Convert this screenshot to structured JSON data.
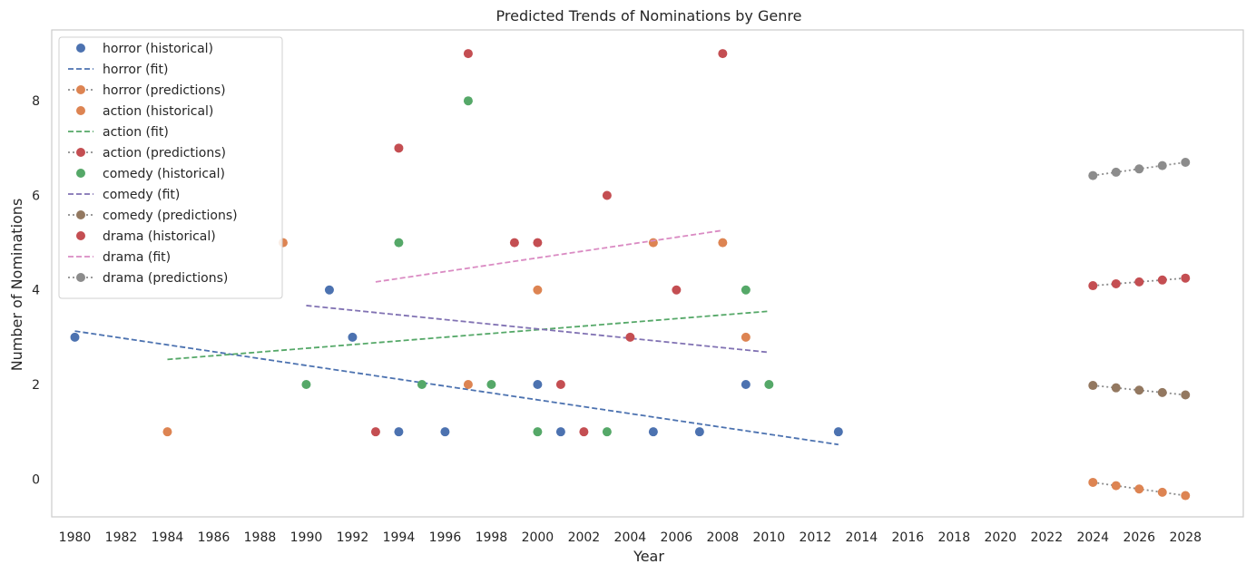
{
  "chart_data": {
    "type": "scatter",
    "title": "Predicted Trends of Nominations by Genre",
    "xlabel": "Year",
    "ylabel": "Number of Nominations",
    "xlim": [
      1979,
      2030.5
    ],
    "ylim": [
      -0.8,
      9.5
    ],
    "xticks": [
      1980,
      1982,
      1984,
      1986,
      1988,
      1990,
      1992,
      1994,
      1996,
      1998,
      2000,
      2002,
      2004,
      2006,
      2008,
      2010,
      2012,
      2014,
      2016,
      2018,
      2020,
      2022,
      2024,
      2026,
      2028
    ],
    "yticks": [
      0,
      2,
      4,
      6,
      8
    ],
    "grid": false,
    "legend_position": "top-left",
    "series": [
      {
        "name": "horror (historical)",
        "kind": "scatter",
        "color": "#4c72b0",
        "x": [
          1980,
          1991,
          1992,
          1994,
          1996,
          2000,
          2001,
          2005,
          2007,
          2009,
          2013
        ],
        "y": [
          3,
          4,
          3,
          1,
          1,
          2,
          1,
          1,
          1,
          2,
          1
        ]
      },
      {
        "name": "horror (fit)",
        "kind": "line",
        "dash": "dashed",
        "color": "#4c72b0",
        "x": [
          1980,
          2013
        ],
        "y": [
          3.13,
          0.73
        ]
      },
      {
        "name": "horror (predictions)",
        "kind": "line-markers",
        "dash": "dotted",
        "color": "#dd8452",
        "line_color": "#8c8c8c",
        "x": [
          2024,
          2025,
          2026,
          2027,
          2028
        ],
        "y": [
          -0.07,
          -0.14,
          -0.21,
          -0.28,
          -0.35
        ]
      },
      {
        "name": "action (historical)",
        "kind": "scatter",
        "color": "#dd8452",
        "x": [
          1984,
          1989,
          1997,
          2000,
          2005,
          2008,
          2009
        ],
        "y": [
          1,
          5,
          2,
          4,
          5,
          5,
          3
        ]
      },
      {
        "name": "action (fit)",
        "kind": "line",
        "dash": "dashed",
        "color": "#55a868",
        "x": [
          1984,
          2010
        ],
        "y": [
          2.53,
          3.55
        ]
      },
      {
        "name": "action (predictions)",
        "kind": "line-markers",
        "dash": "dotted",
        "color": "#c44e52",
        "line_color": "#8c8c8c",
        "x": [
          2024,
          2025,
          2026,
          2027,
          2028
        ],
        "y": [
          4.09,
          4.13,
          4.17,
          4.21,
          4.25
        ]
      },
      {
        "name": "comedy (historical)",
        "kind": "scatter",
        "color": "#55a868",
        "x": [
          1990,
          1994,
          1995,
          1997,
          1998,
          2000,
          2003,
          2009,
          2010
        ],
        "y": [
          2,
          5,
          2,
          8,
          2,
          1,
          1,
          4,
          2
        ]
      },
      {
        "name": "comedy (fit)",
        "kind": "line",
        "dash": "dashed",
        "color": "#8172b3",
        "x": [
          1990,
          2010
        ],
        "y": [
          3.67,
          2.68
        ]
      },
      {
        "name": "comedy (predictions)",
        "kind": "line-markers",
        "dash": "dotted",
        "color": "#937860",
        "line_color": "#8c8c8c",
        "x": [
          2024,
          2025,
          2026,
          2027,
          2028
        ],
        "y": [
          1.98,
          1.93,
          1.88,
          1.83,
          1.78
        ]
      },
      {
        "name": "drama (historical)",
        "kind": "scatter",
        "color": "#c44e52",
        "x": [
          1993,
          1994,
          1997,
          1999,
          2000,
          2001,
          2002,
          2003,
          2004,
          2006,
          2008
        ],
        "y": [
          1,
          7,
          9,
          5,
          5,
          2,
          1,
          6,
          3,
          4,
          9
        ]
      },
      {
        "name": "drama (fit)",
        "kind": "line",
        "dash": "dashed",
        "color": "#da8bc3",
        "x": [
          1993,
          2008
        ],
        "y": [
          4.17,
          5.26
        ]
      },
      {
        "name": "drama (predictions)",
        "kind": "line-markers",
        "dash": "dotted",
        "color": "#8c8c8c",
        "line_color": "#8c8c8c",
        "x": [
          2024,
          2025,
          2026,
          2027,
          2028
        ],
        "y": [
          6.42,
          6.49,
          6.56,
          6.63,
          6.7
        ]
      }
    ]
  }
}
